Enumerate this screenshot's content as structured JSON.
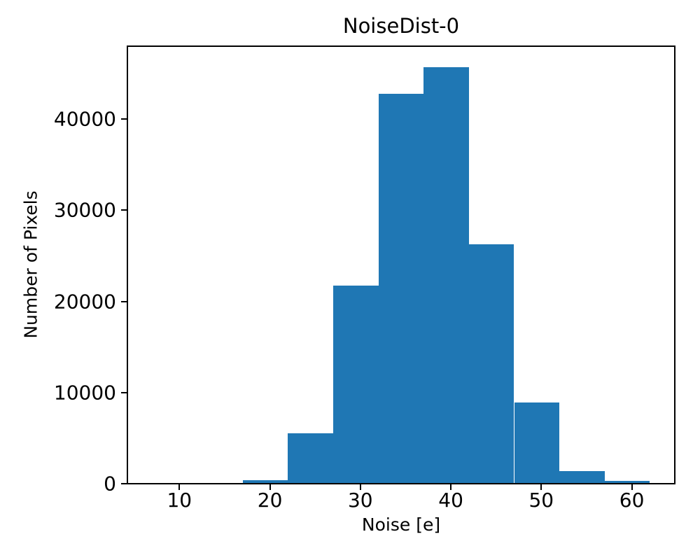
{
  "chart_data": {
    "type": "bar",
    "subtype": "histogram",
    "title": "NoiseDist-0",
    "xlabel": "Noise [e]",
    "ylabel": "Number of Pixels",
    "bin_edges": [
      17,
      22,
      27,
      32,
      37,
      42,
      47,
      52,
      57,
      62
    ],
    "values": [
      400,
      5500,
      21700,
      42800,
      45700,
      26300,
      8900,
      1400,
      300
    ],
    "xticks": [
      10,
      20,
      30,
      40,
      50,
      60
    ],
    "yticks": [
      0,
      10000,
      20000,
      30000,
      40000
    ],
    "xlim": [
      4.25,
      64.75
    ],
    "ylim": [
      0,
      48000
    ],
    "bar_color": "#1f77b4",
    "axis_color": "#000000",
    "background_color": "#ffffff",
    "grid": false,
    "legend": null
  }
}
